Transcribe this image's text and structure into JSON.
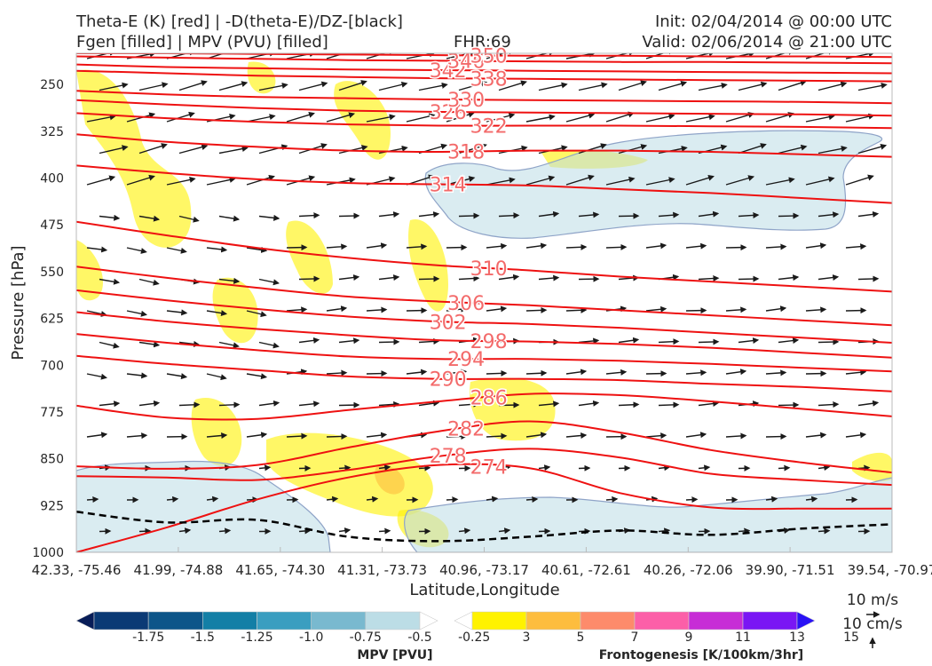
{
  "header": {
    "title_line1": "Theta-E (K) [red] | -D(theta-E)/DZ-[black]",
    "title_line2": "Fgen [filled] | MPV (PVU) [filled]",
    "fhr": "FHR:69",
    "init": "Init: 02/04/2014 @ 00:00 UTC",
    "valid": "Valid: 02/06/2014 @ 21:00 UTC"
  },
  "chart_data": {
    "type": "cross-section",
    "ylabel": "Pressure [hPa]",
    "xlabel": "Latitude,Longitude",
    "y_scale": "linear-reversed",
    "ylim": [
      1000,
      200
    ],
    "y_ticks": [
      250,
      325,
      400,
      475,
      550,
      625,
      700,
      775,
      850,
      925,
      1000
    ],
    "x_ticks": [
      "42.33, -75.46",
      "41.99, -74.88",
      "41.65, -74.30",
      "41.31, -73.73",
      "40.96, -73.17",
      "40.61, -72.61",
      "40.26, -72.06",
      "39.90, -71.51",
      "39.54, -70.97"
    ],
    "theta_e_contours": [
      {
        "value": 274,
        "label": "274",
        "pressures": [
          1000,
          960,
          915,
          880,
          860,
          865,
          905,
          928,
          930,
          930
        ]
      },
      {
        "value": 278,
        "label": "278",
        "pressures": [
          878,
          880,
          884,
          868,
          846,
          834,
          848,
          874,
          884,
          892
        ]
      },
      {
        "value": 282,
        "label": "282",
        "pressures": [
          862,
          866,
          860,
          832,
          806,
          790,
          808,
          836,
          856,
          872
        ]
      },
      {
        "value": 286,
        "label": "286",
        "pressures": [
          765,
          784,
          786,
          772,
          758,
          746,
          748,
          758,
          770,
          782
        ]
      },
      {
        "value": 290,
        "label": "290",
        "pressures": [
          685,
          698,
          708,
          718,
          722,
          722,
          724,
          730,
          735,
          742
        ]
      },
      {
        "value": 294,
        "label": "294",
        "pressures": [
          650,
          664,
          676,
          686,
          690,
          690,
          693,
          698,
          704,
          710
        ]
      },
      {
        "value": 298,
        "label": "298",
        "pressures": [
          615,
          630,
          642,
          652,
          660,
          662,
          666,
          672,
          680,
          688
        ]
      },
      {
        "value": 302,
        "label": "302",
        "pressures": [
          580,
          596,
          610,
          622,
          630,
          634,
          640,
          648,
          656,
          664
        ]
      },
      {
        "value": 306,
        "label": "306",
        "pressures": [
          542,
          560,
          576,
          590,
          598,
          604,
          612,
          620,
          628,
          636
        ]
      },
      {
        "value": 310,
        "label": "310",
        "pressures": [
          470,
          492,
          512,
          528,
          540,
          548,
          558,
          566,
          574,
          582
        ]
      },
      {
        "value": 314,
        "label": "314",
        "pressures": [
          380,
          392,
          402,
          408,
          410,
          412,
          418,
          424,
          432,
          440
        ]
      },
      {
        "value": 318,
        "label": "318",
        "pressures": [
          330,
          342,
          350,
          356,
          358,
          356,
          356,
          358,
          362,
          366
        ]
      },
      {
        "value": 322,
        "label": "322",
        "pressures": [
          296,
          304,
          310,
          314,
          316,
          316,
          316,
          317,
          318,
          320
        ]
      },
      {
        "value": 326,
        "label": "326",
        "pressures": [
          275,
          282,
          288,
          292,
          294,
          295,
          296,
          297,
          298,
          300
        ]
      },
      {
        "value": 330,
        "label": "330",
        "pressures": [
          260,
          266,
          270,
          272,
          274,
          275,
          276,
          277,
          278,
          280
        ]
      },
      {
        "value": 338,
        "label": "338",
        "pressures": [
          228,
          232,
          236,
          238,
          240,
          241,
          242,
          243,
          244,
          245
        ]
      },
      {
        "value": 342,
        "label": "342",
        "pressures": [
          218,
          222,
          224,
          226,
          227,
          228,
          229,
          230,
          231,
          232
        ]
      },
      {
        "value": 346,
        "label": "346",
        "pressures": [
          205,
          207,
          209,
          211,
          212,
          213,
          214,
          214,
          215,
          216
        ]
      },
      {
        "value": 350,
        "label": "350",
        "pressures": [
          200,
          200,
          201,
          202,
          203,
          204,
          204,
          205,
          205,
          206
        ]
      }
    ],
    "stability_contour": {
      "color": "#000000",
      "style": "dashed",
      "pressures": [
        935,
        952,
        948,
        975,
        982,
        975,
        965,
        972,
        962,
        955
      ]
    },
    "mpv_colorbar": {
      "label": "MPV [PVU]",
      "ticks": [
        "-1.75",
        "-1.5",
        "-1.25",
        "-1.0",
        "-0.75",
        "-0.5",
        "-0.25"
      ],
      "colors": [
        "#081d58",
        "#0b3a75",
        "#0d5589",
        "#137fa6",
        "#3a9ec0",
        "#79b9cf",
        "#bcdde6",
        "#ffffff"
      ]
    },
    "fgen_colorbar": {
      "label": "Frontogenesis [K/100km/3hr]",
      "ticks": [
        "3",
        "5",
        "7",
        "9",
        "11",
        "13",
        "15"
      ],
      "colors": [
        "#ffffff",
        "#fff200",
        "#fdbd3e",
        "#fd8b6b",
        "#fc5fa8",
        "#c72dd6",
        "#7a16f4",
        "#2a12f5"
      ]
    },
    "vector_key": {
      "horizontal": "10 m/s",
      "vertical": "10 cm/s"
    }
  }
}
